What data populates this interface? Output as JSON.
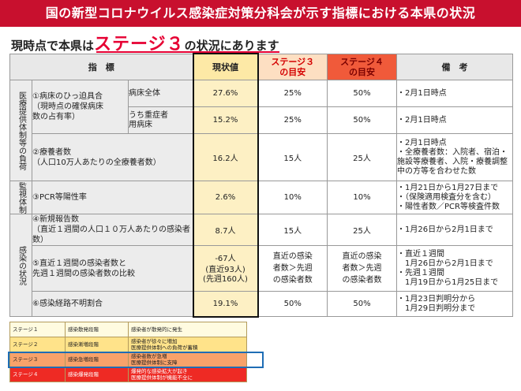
{
  "title": "国の新型コロナウイルス感染症対策分科会が示す指標における本県の状況",
  "headline": {
    "prefix": "現時点で本県は",
    "stage": "ステージ３",
    "suffix": "の状況にあります"
  },
  "table": {
    "headers": {
      "indicator": "指　標",
      "current": "現状値",
      "stage3": "ステージ３\nの目安",
      "stage4": "ステージ４\nの目安",
      "notes": "備　考"
    },
    "categories": {
      "medical": "医療提供体制等の負荷",
      "surveillance": "監視体制",
      "infection": "感染の状況"
    },
    "rows": {
      "hospital_label": "①病床のひっ迫具合\n（現時点の確保病床\n数の占有率）",
      "hospital_all_label": "病床全体",
      "hospital_all_current": "27.6%",
      "hospital_all_s3": "25%",
      "hospital_all_s4": "50%",
      "hospital_all_note": "・2月1日時点",
      "hospital_severe_label": "うち重症者\n用病床",
      "hospital_severe_current": "15.2%",
      "hospital_severe_s3": "25%",
      "hospital_severe_s4": "50%",
      "hospital_severe_note": "・2月1日時点",
      "care_label": "②療養者数\n（人口10万人あたりの全療養者数）",
      "care_current": "16.2人",
      "care_s3": "15人",
      "care_s4": "25人",
      "care_note": "・2月1日時点\n・全療養者数：入院者、宿泊・施設等療養者、入院・療養調整中の方等を合わせた数",
      "pcr_label": "③PCR等陽性率",
      "pcr_current": "2.6%",
      "pcr_s3": "10%",
      "pcr_s4": "10%",
      "pcr_note": "・1月21日から1月27日まで\n・（保険適用検査分を含む）\n・陽性者数／PCR等検査件数",
      "new_label": "④新規報告数\n（直近１週間の人口１０万人あたりの感染者数）",
      "new_current": "8.7人",
      "new_s3": "15人",
      "new_s4": "25人",
      "new_note": "・1月26日から2月1日まで",
      "ratio_label": "⑤直近１週間の感染者数と\n先週１週間の感染者数の比較",
      "ratio_current": "-67人",
      "ratio_current_sub1": "(直近93人)",
      "ratio_current_sub2": "(先週160人)",
      "ratio_s3": "直近の感染\n者数＞先週\nの感染者数",
      "ratio_s4": "直近の感染\n者数＞先週\nの感染者数",
      "ratio_note": "・直近１週間\n　1月26日から2月1日まで\n・先週１週間\n　1月19日から1月25日まで",
      "unknown_label": "⑥感染経路不明割合",
      "unknown_current": "19.1%",
      "unknown_s3": "50%",
      "unknown_s4": "50%",
      "unknown_note": "・1月23日判明分から\n　1月29日判明分まで"
    }
  },
  "legend": [
    {
      "stage": "ステージ１",
      "phase": "感染散発段階",
      "desc": "感染者が散発的に発生"
    },
    {
      "stage": "ステージ２",
      "phase": "感染漸増段階",
      "desc": "感染者が徐々に増加\n医療提供体制への負荷が蓄積"
    },
    {
      "stage": "ステージ３",
      "phase": "感染急増段階",
      "desc": "感染者数が急増\n医療提供体制に支障"
    },
    {
      "stage": "ステージ４",
      "phase": "感染爆発段階",
      "desc": "爆発的な感染拡大が起き\n医療提供体制が機能不全に"
    }
  ],
  "colors": {
    "title_bg": "#c8102e",
    "stage_text": "#e60033",
    "current_col": "#fdf0c4",
    "stage4_header": "#f05a3a",
    "legend_highlight": "#1e6db5"
  }
}
